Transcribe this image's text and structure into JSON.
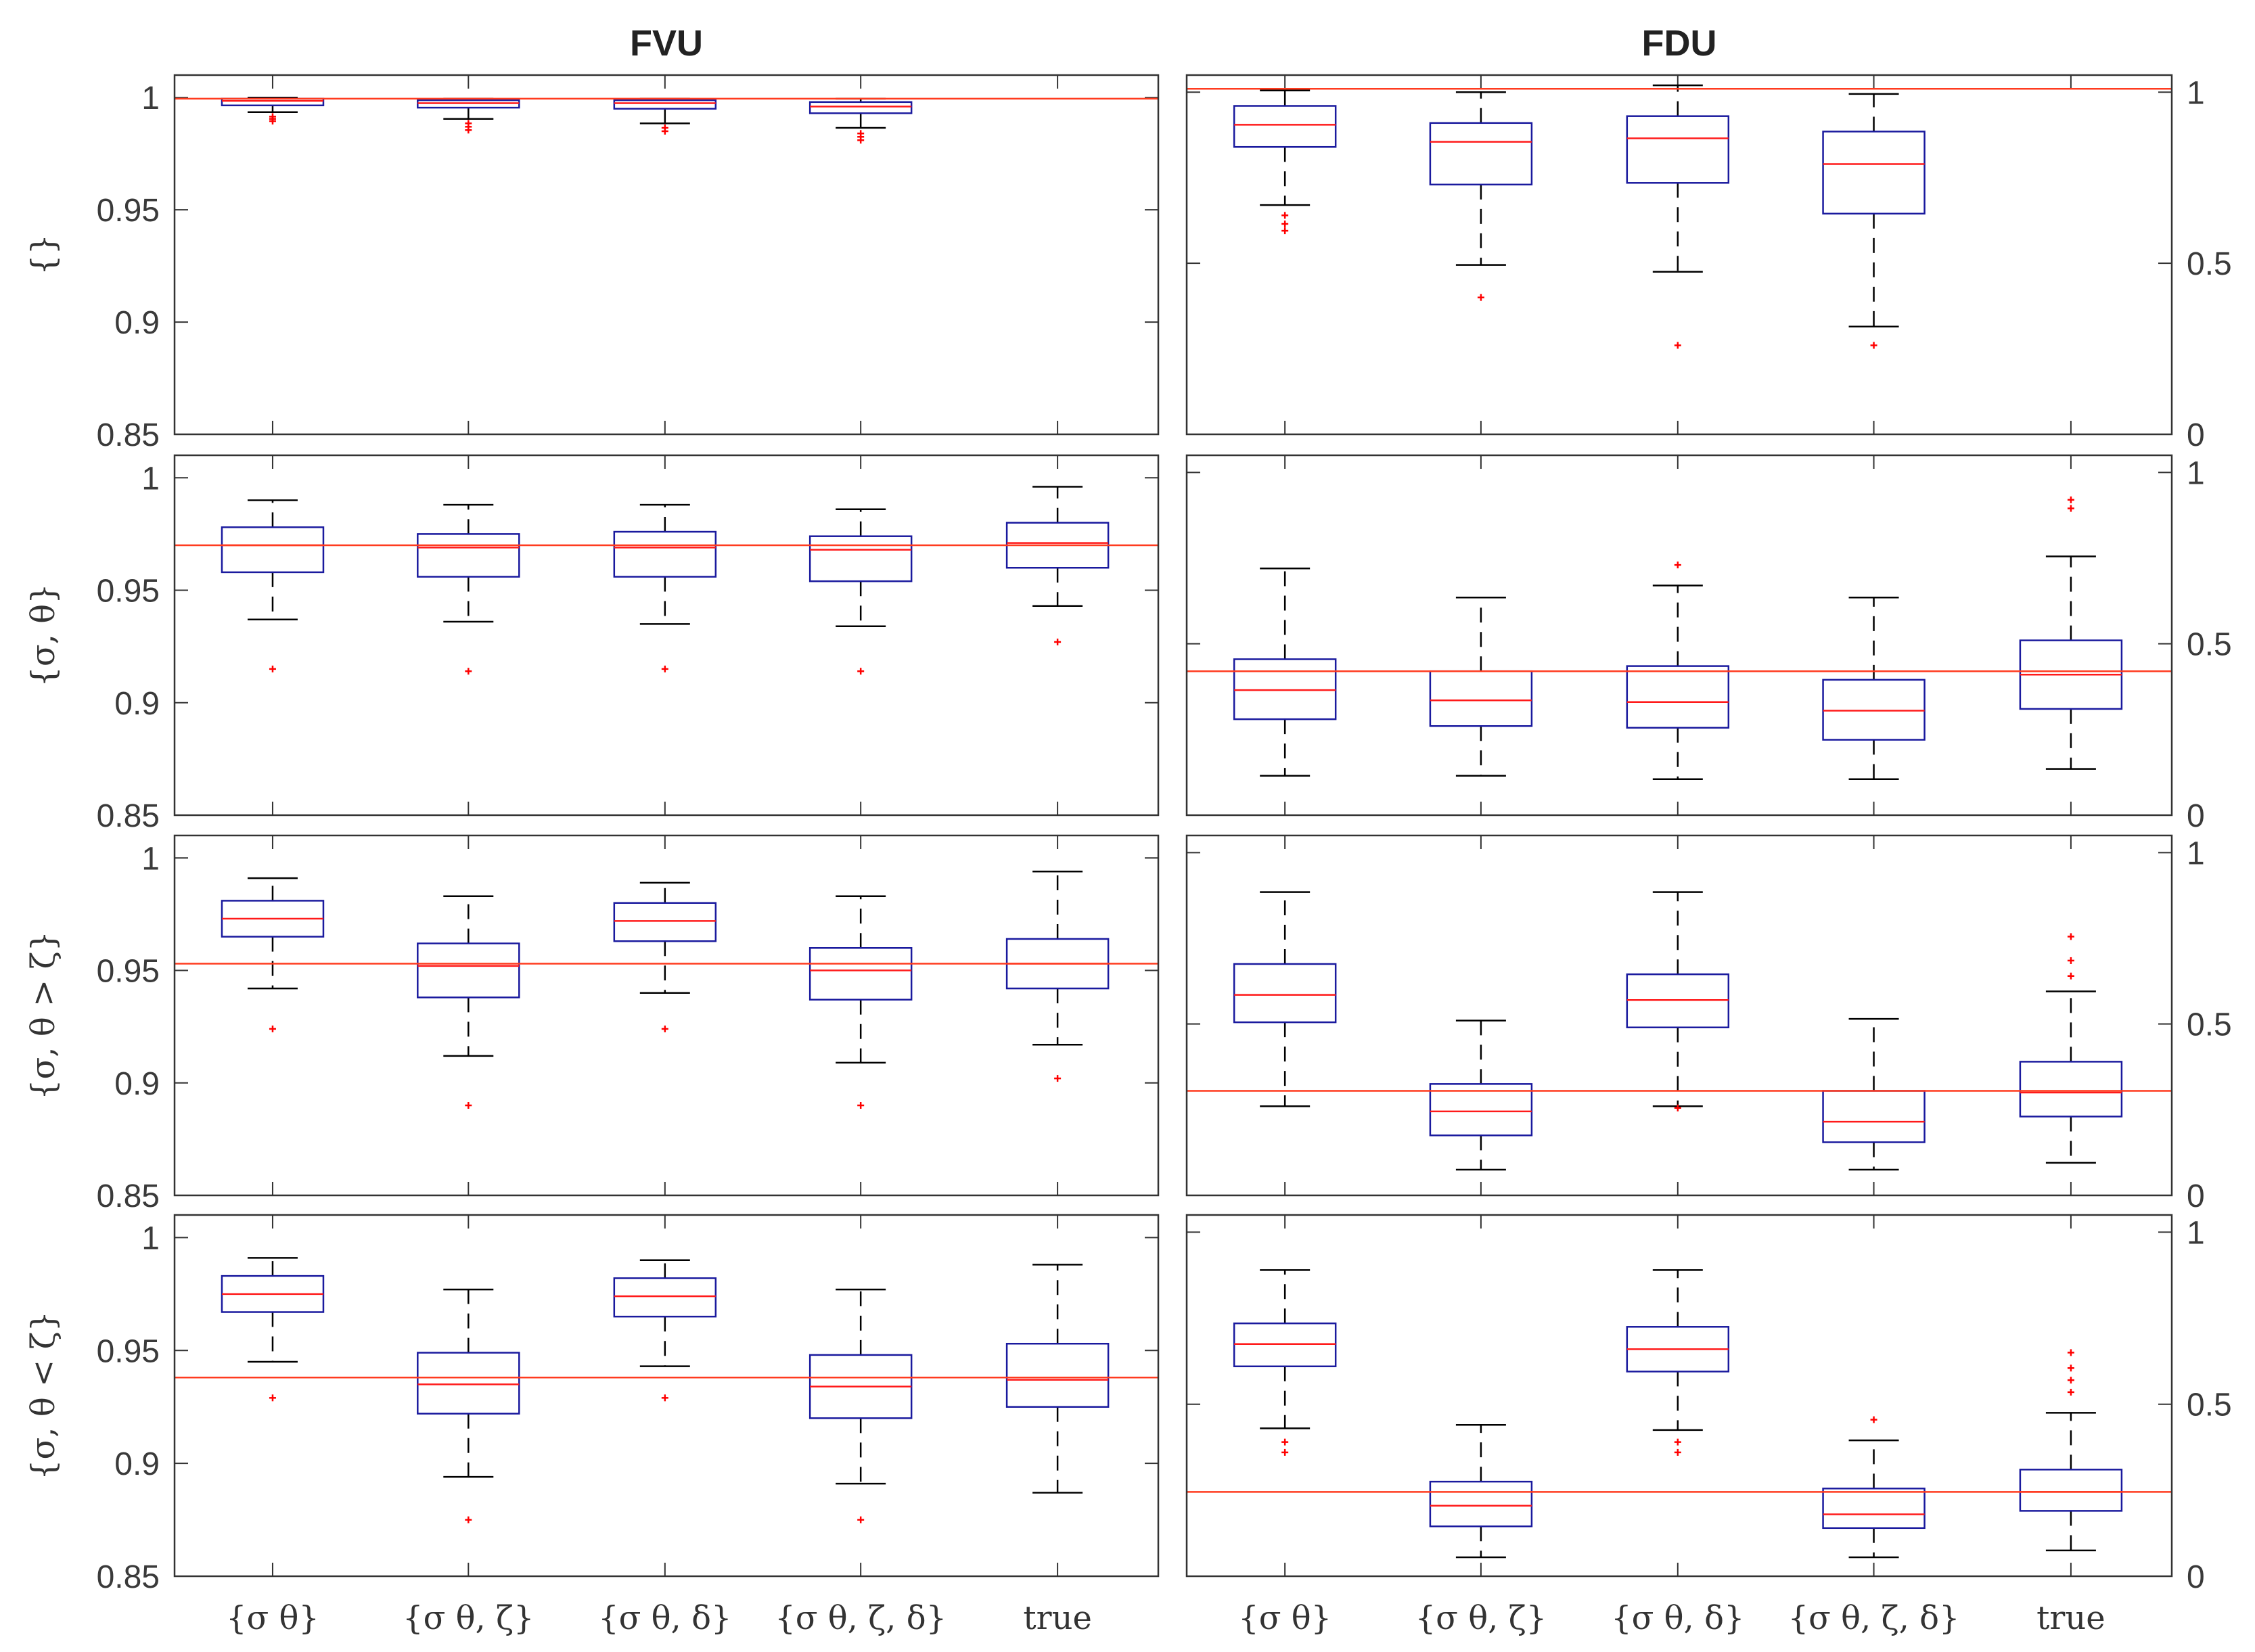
{
  "chart_data": {
    "type": "box",
    "columns": [
      "FVU",
      "FDU"
    ],
    "rows": [
      "{}",
      "{σ, θ}",
      "{σ, θ > ζ}",
      "{σ, θ < ζ}"
    ],
    "categories": [
      "{σ θ}",
      "{σ θ, ζ}",
      "{σ θ, δ}",
      "{σ θ, ζ, δ}",
      "true"
    ],
    "axes": {
      "FVU": {
        "ylim": [
          0.85,
          1.01
        ],
        "ticks": [
          0.85,
          0.9,
          0.95,
          1
        ],
        "tick_labels": [
          "0.85",
          "0.9",
          "0.95",
          "1"
        ],
        "side": "left"
      },
      "FDU": {
        "ylim": [
          0,
          1.05
        ],
        "ticks": [
          0,
          0.5,
          1
        ],
        "tick_labels": [
          "0",
          "0.5",
          "1"
        ],
        "side": "right"
      }
    },
    "colors": {
      "box": "#1a1a9e",
      "median": "#ff1a1a",
      "whisker": "#000000",
      "outlier": "#ff0000",
      "reference": "#ff3b1f",
      "frame": "#333333"
    },
    "panels": [
      {
        "row": 0,
        "col": "FVU",
        "reference": 0.9995,
        "boxes": [
          {
            "category": 0,
            "q1": 0.9965,
            "median": 0.9985,
            "q3": 0.9995,
            "whisker_low": 0.9935,
            "whisker_high": 1.0,
            "outliers": [
              0.9895,
              0.9905,
              0.9915
            ]
          },
          {
            "category": 1,
            "q1": 0.9955,
            "median": 0.9975,
            "q3": 0.9988,
            "whisker_low": 0.9905,
            "whisker_high": 0.9995,
            "outliers": [
              0.9855,
              0.987,
              0.9885
            ]
          },
          {
            "category": 2,
            "q1": 0.995,
            "median": 0.9975,
            "q3": 0.9988,
            "whisker_low": 0.9885,
            "whisker_high": 0.9995,
            "outliers": [
              0.985,
              0.9865
            ]
          },
          {
            "category": 3,
            "q1": 0.993,
            "median": 0.996,
            "q3": 0.998,
            "whisker_low": 0.9865,
            "whisker_high": 0.9995,
            "outliers": [
              0.981,
              0.9825,
              0.984
            ]
          }
        ]
      },
      {
        "row": 0,
        "col": "FDU",
        "reference": 1.01,
        "boxes": [
          {
            "category": 0,
            "q1": 0.84,
            "median": 0.905,
            "q3": 0.96,
            "whisker_low": 0.67,
            "whisker_high": 1.005,
            "outliers": [
              0.595,
              0.615,
              0.64
            ]
          },
          {
            "category": 1,
            "q1": 0.73,
            "median": 0.855,
            "q3": 0.91,
            "whisker_low": 0.495,
            "whisker_high": 1.0,
            "outliers": [
              0.4
            ]
          },
          {
            "category": 2,
            "q1": 0.735,
            "median": 0.865,
            "q3": 0.93,
            "whisker_low": 0.475,
            "whisker_high": 1.02,
            "outliers": [
              0.26
            ]
          },
          {
            "category": 3,
            "q1": 0.645,
            "median": 0.79,
            "q3": 0.885,
            "whisker_low": 0.315,
            "whisker_high": 0.995,
            "outliers": [
              0.26
            ]
          }
        ]
      },
      {
        "row": 1,
        "col": "FVU",
        "reference": 0.97,
        "boxes": [
          {
            "category": 0,
            "q1": 0.958,
            "median": 0.97,
            "q3": 0.978,
            "whisker_low": 0.937,
            "whisker_high": 0.99,
            "outliers": [
              0.915
            ]
          },
          {
            "category": 1,
            "q1": 0.956,
            "median": 0.969,
            "q3": 0.975,
            "whisker_low": 0.936,
            "whisker_high": 0.988,
            "outliers": [
              0.914
            ]
          },
          {
            "category": 2,
            "q1": 0.956,
            "median": 0.969,
            "q3": 0.976,
            "whisker_low": 0.935,
            "whisker_high": 0.988,
            "outliers": [
              0.915
            ]
          },
          {
            "category": 3,
            "q1": 0.954,
            "median": 0.968,
            "q3": 0.974,
            "whisker_low": 0.934,
            "whisker_high": 0.986,
            "outliers": [
              0.914
            ]
          },
          {
            "category": 4,
            "q1": 0.96,
            "median": 0.971,
            "q3": 0.98,
            "whisker_low": 0.943,
            "whisker_high": 0.996,
            "outliers": [
              0.927
            ]
          }
        ]
      },
      {
        "row": 1,
        "col": "FDU",
        "reference": 0.42,
        "boxes": [
          {
            "category": 0,
            "q1": 0.28,
            "median": 0.365,
            "q3": 0.455,
            "whisker_low": 0.115,
            "whisker_high": 0.72,
            "outliers": []
          },
          {
            "category": 1,
            "q1": 0.26,
            "median": 0.335,
            "q3": 0.42,
            "whisker_low": 0.115,
            "whisker_high": 0.635,
            "outliers": []
          },
          {
            "category": 2,
            "q1": 0.255,
            "median": 0.33,
            "q3": 0.435,
            "whisker_low": 0.105,
            "whisker_high": 0.67,
            "outliers": [
              0.73
            ]
          },
          {
            "category": 3,
            "q1": 0.22,
            "median": 0.305,
            "q3": 0.395,
            "whisker_low": 0.105,
            "whisker_high": 0.635,
            "outliers": []
          },
          {
            "category": 4,
            "q1": 0.31,
            "median": 0.41,
            "q3": 0.51,
            "whisker_low": 0.135,
            "whisker_high": 0.755,
            "outliers": [
              0.895,
              0.92
            ]
          }
        ]
      },
      {
        "row": 2,
        "col": "FVU",
        "reference": 0.953,
        "boxes": [
          {
            "category": 0,
            "q1": 0.965,
            "median": 0.973,
            "q3": 0.981,
            "whisker_low": 0.942,
            "whisker_high": 0.991,
            "outliers": [
              0.924
            ]
          },
          {
            "category": 1,
            "q1": 0.938,
            "median": 0.952,
            "q3": 0.962,
            "whisker_low": 0.912,
            "whisker_high": 0.983,
            "outliers": [
              0.89
            ]
          },
          {
            "category": 2,
            "q1": 0.963,
            "median": 0.972,
            "q3": 0.98,
            "whisker_low": 0.94,
            "whisker_high": 0.989,
            "outliers": [
              0.924
            ]
          },
          {
            "category": 3,
            "q1": 0.937,
            "median": 0.95,
            "q3": 0.96,
            "whisker_low": 0.909,
            "whisker_high": 0.983,
            "outliers": [
              0.89
            ]
          },
          {
            "category": 4,
            "q1": 0.942,
            "median": 0.953,
            "q3": 0.964,
            "whisker_low": 0.917,
            "whisker_high": 0.994,
            "outliers": [
              0.902
            ]
          }
        ]
      },
      {
        "row": 2,
        "col": "FDU",
        "reference": 0.305,
        "boxes": [
          {
            "category": 0,
            "q1": 0.505,
            "median": 0.585,
            "q3": 0.675,
            "whisker_low": 0.26,
            "whisker_high": 0.885,
            "outliers": []
          },
          {
            "category": 1,
            "q1": 0.175,
            "median": 0.245,
            "q3": 0.325,
            "whisker_low": 0.075,
            "whisker_high": 0.51,
            "outliers": []
          },
          {
            "category": 2,
            "q1": 0.49,
            "median": 0.57,
            "q3": 0.645,
            "whisker_low": 0.26,
            "whisker_high": 0.885,
            "outliers": [
              0.255
            ]
          },
          {
            "category": 3,
            "q1": 0.155,
            "median": 0.215,
            "q3": 0.305,
            "whisker_low": 0.075,
            "whisker_high": 0.515,
            "outliers": []
          },
          {
            "category": 4,
            "q1": 0.23,
            "median": 0.3,
            "q3": 0.39,
            "whisker_low": 0.095,
            "whisker_high": 0.595,
            "outliers": [
              0.64,
              0.685,
              0.755
            ]
          }
        ]
      },
      {
        "row": 3,
        "col": "FVU",
        "reference": 0.938,
        "boxes": [
          {
            "category": 0,
            "q1": 0.967,
            "median": 0.975,
            "q3": 0.983,
            "whisker_low": 0.945,
            "whisker_high": 0.991,
            "outliers": [
              0.929
            ]
          },
          {
            "category": 1,
            "q1": 0.922,
            "median": 0.935,
            "q3": 0.949,
            "whisker_low": 0.894,
            "whisker_high": 0.977,
            "outliers": [
              0.875
            ]
          },
          {
            "category": 2,
            "q1": 0.965,
            "median": 0.974,
            "q3": 0.982,
            "whisker_low": 0.943,
            "whisker_high": 0.99,
            "outliers": [
              0.929
            ]
          },
          {
            "category": 3,
            "q1": 0.92,
            "median": 0.934,
            "q3": 0.948,
            "whisker_low": 0.891,
            "whisker_high": 0.977,
            "outliers": [
              0.875
            ]
          },
          {
            "category": 4,
            "q1": 0.925,
            "median": 0.937,
            "q3": 0.953,
            "whisker_low": 0.887,
            "whisker_high": 0.988,
            "outliers": []
          }
        ]
      },
      {
        "row": 3,
        "col": "FDU",
        "reference": 0.245,
        "boxes": [
          {
            "category": 0,
            "q1": 0.61,
            "median": 0.675,
            "q3": 0.735,
            "whisker_low": 0.43,
            "whisker_high": 0.89,
            "outliers": [
              0.36,
              0.39
            ]
          },
          {
            "category": 1,
            "q1": 0.145,
            "median": 0.205,
            "q3": 0.275,
            "whisker_low": 0.055,
            "whisker_high": 0.44,
            "outliers": []
          },
          {
            "category": 2,
            "q1": 0.595,
            "median": 0.66,
            "q3": 0.725,
            "whisker_low": 0.425,
            "whisker_high": 0.89,
            "outliers": [
              0.36,
              0.39
            ]
          },
          {
            "category": 3,
            "q1": 0.14,
            "median": 0.18,
            "q3": 0.255,
            "whisker_low": 0.055,
            "whisker_high": 0.395,
            "outliers": [
              0.455
            ]
          },
          {
            "category": 4,
            "q1": 0.19,
            "median": 0.245,
            "q3": 0.31,
            "whisker_low": 0.075,
            "whisker_high": 0.475,
            "outliers": [
              0.535,
              0.57,
              0.605,
              0.65
            ]
          }
        ]
      }
    ]
  }
}
